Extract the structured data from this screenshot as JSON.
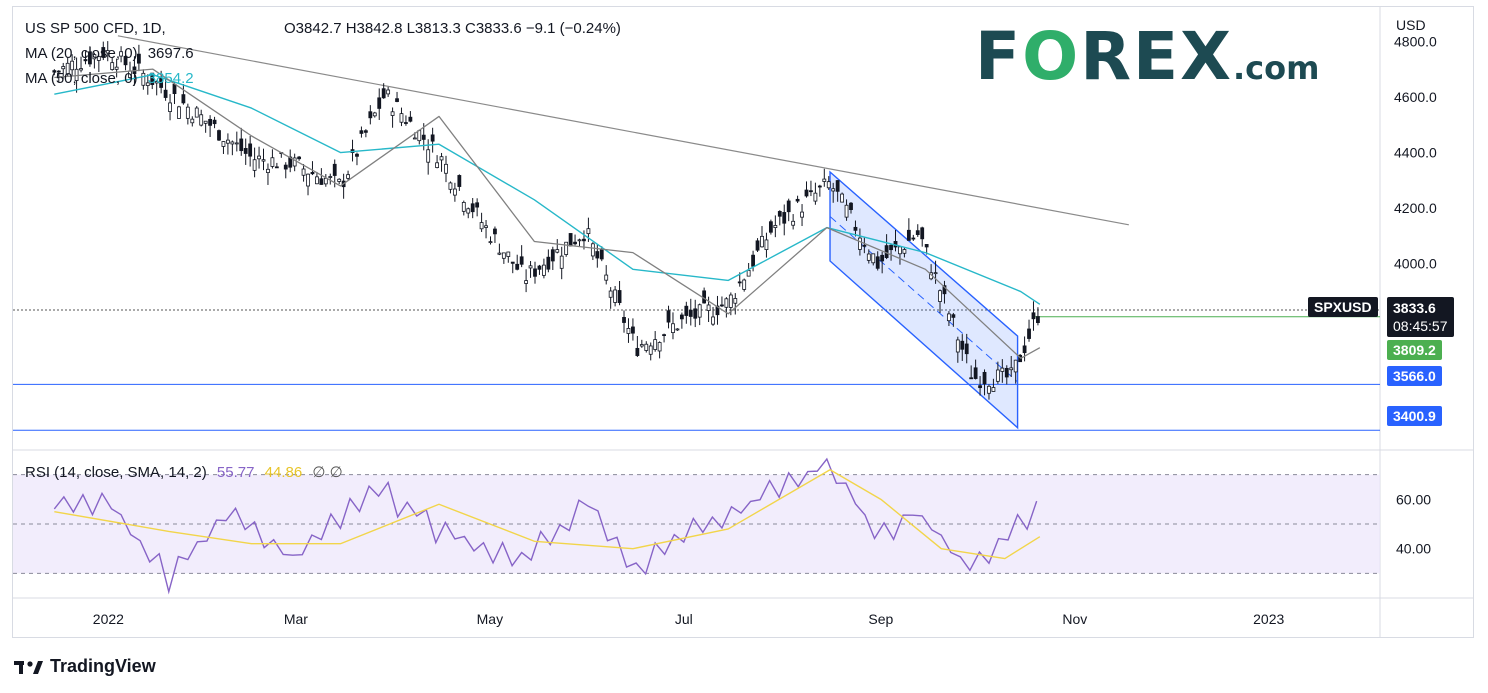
{
  "header": {
    "symbol": "US SP 500 CFD, 1D,",
    "ohlc": "O3842.7  H3842.8  L3813.3  C3833.6  −9.1 (−0.24%)",
    "ma20_label": "MA (20, close, 0)",
    "ma20_value": "3697.6",
    "ma50_label": "MA (50, close, 0)",
    "ma50_value": "3854.2"
  },
  "rsi_header": {
    "label": "RSI (14, close, SMA, 14, 2)",
    "rsi_value": "55.77",
    "sma_value": "44.86",
    "extra": "∅  ∅"
  },
  "brand": {
    "forex": "F",
    "forex_o": "O",
    "forex_rest": "REX",
    "forex_com": ".com"
  },
  "footer": {
    "tradingview": "TradingView"
  },
  "axis": {
    "currency": "USD",
    "price_ticks": [
      "4800.0",
      "4600.0",
      "4400.0",
      "4200.0",
      "4000.0"
    ],
    "rsi_ticks": [
      "60.00",
      "40.00"
    ],
    "x_ticks": [
      "2022",
      "Mar",
      "May",
      "Jul",
      "Sep",
      "Nov",
      "2023"
    ]
  },
  "labels": {
    "symbol_tag": "SPXUSD",
    "last_price": "3833.6",
    "countdown": "08:45:57",
    "support_green": "3809.2",
    "support_1": "3566.0",
    "support_2": "3400.9"
  },
  "colors": {
    "candle": "#131722",
    "ma20": "#808080",
    "ma50": "#27b8c9",
    "rsi": "#8764c7",
    "rsi_sma": "#f2d54a",
    "hline": "#2962ff",
    "channel": "#2962ff",
    "green": "#4caf50"
  },
  "chart_data": [
    {
      "type": "line",
      "title": "US SP 500 CFD, 1D",
      "ylabel": "USD",
      "ylim": [
        3330,
        4920
      ],
      "x_ticks": [
        "2022",
        "Mar",
        "May",
        "Jul",
        "Sep",
        "Nov",
        "2023"
      ],
      "series": [
        {
          "name": "US SP 500 CFD",
          "x": [
            "2021-12-15",
            "2021-12-31",
            "2022-01-15",
            "2022-01-31",
            "2022-02-15",
            "2022-02-28",
            "2022-03-15",
            "2022-03-29",
            "2022-04-15",
            "2022-04-29",
            "2022-05-12",
            "2022-05-31",
            "2022-06-16",
            "2022-06-30",
            "2022-07-15",
            "2022-07-29",
            "2022-08-16",
            "2022-08-31",
            "2022-09-13",
            "2022-09-30",
            "2022-10-12",
            "2022-10-21"
          ],
          "values": [
            4690,
            4765,
            4660,
            4520,
            4380,
            4360,
            4280,
            4610,
            4390,
            4140,
            3950,
            4120,
            3700,
            3790,
            3860,
            4130,
            4290,
            4000,
            4110,
            3590,
            3590,
            3834
          ]
        },
        {
          "name": "MA (20, close, 0)",
          "x": [
            "2021-12-15",
            "2022-01-15",
            "2022-02-15",
            "2022-03-15",
            "2022-04-15",
            "2022-05-15",
            "2022-06-15",
            "2022-07-15",
            "2022-08-15",
            "2022-09-15",
            "2022-10-15",
            "2022-10-21"
          ],
          "values": [
            4670,
            4700,
            4460,
            4280,
            4530,
            4080,
            4040,
            3820,
            4130,
            3980,
            3660,
            3698
          ]
        },
        {
          "name": "MA (50, close, 0)",
          "x": [
            "2021-12-15",
            "2022-01-15",
            "2022-02-15",
            "2022-03-15",
            "2022-04-15",
            "2022-05-15",
            "2022-06-15",
            "2022-07-15",
            "2022-08-15",
            "2022-09-15",
            "2022-10-15",
            "2022-10-21"
          ],
          "values": [
            4610,
            4680,
            4560,
            4400,
            4430,
            4230,
            3980,
            3940,
            4130,
            4040,
            3900,
            3854
          ]
        }
      ],
      "horizontal_levels": [
        3566.0,
        3400.9,
        3809.2
      ]
    },
    {
      "type": "line",
      "title": "RSI (14, close, SMA, 14, 2)",
      "ylim": [
        20,
        80
      ],
      "x_ticks": [
        "2022",
        "Mar",
        "May",
        "Jul",
        "Sep",
        "Nov",
        "2023"
      ],
      "series": [
        {
          "name": "RSI",
          "x": [
            "2021-12-15",
            "2022-01-01",
            "2022-01-20",
            "2022-02-10",
            "2022-03-01",
            "2022-03-25",
            "2022-04-15",
            "2022-05-10",
            "2022-06-01",
            "2022-06-16",
            "2022-07-10",
            "2022-08-01",
            "2022-08-16",
            "2022-08-30",
            "2022-09-12",
            "2022-09-30",
            "2022-10-12",
            "2022-10-21"
          ],
          "values": [
            57,
            60,
            28,
            56,
            35,
            66,
            47,
            36,
            58,
            33,
            52,
            65,
            76,
            45,
            55,
            31,
            46,
            55.77
          ]
        },
        {
          "name": "SMA",
          "x": [
            "2021-12-15",
            "2022-01-20",
            "2022-02-15",
            "2022-03-15",
            "2022-04-15",
            "2022-05-15",
            "2022-06-15",
            "2022-07-15",
            "2022-08-16",
            "2022-09-01",
            "2022-09-20",
            "2022-10-10",
            "2022-10-21"
          ],
          "values": [
            55,
            47,
            42,
            42,
            58,
            43,
            40,
            48,
            72,
            60,
            40,
            36,
            44.86
          ]
        }
      ]
    }
  ]
}
